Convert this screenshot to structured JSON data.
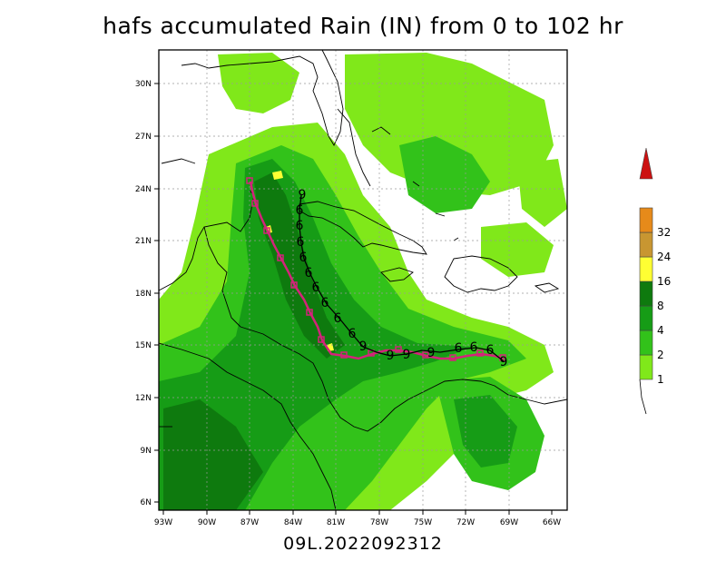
{
  "title": "hafs accumulated Rain (IN) from 0 to 102 hr",
  "footer": "09L.2022092312",
  "lat_labels": [
    "30N",
    "27N",
    "24N",
    "21N",
    "18N",
    "15N",
    "12N",
    "9N",
    "6N"
  ],
  "lon_labels": [
    "93W",
    "90W",
    "87W",
    "84W",
    "81W",
    "78W",
    "75W",
    "72W",
    "69W",
    "66W"
  ],
  "colorbar": {
    "levels": [
      "1",
      "2",
      "4",
      "8",
      "16",
      "24",
      "32"
    ],
    "colors": [
      "#80e81a",
      "#32c21a",
      "#169c16",
      "#0e7a0e",
      "#ffff33",
      "#c89631",
      "#e68a1a",
      "#cc1111"
    ]
  },
  "track_symbol": "tropical-cyclone",
  "track_colors": {
    "forecast": "#d4237a",
    "observed": "#000000"
  }
}
